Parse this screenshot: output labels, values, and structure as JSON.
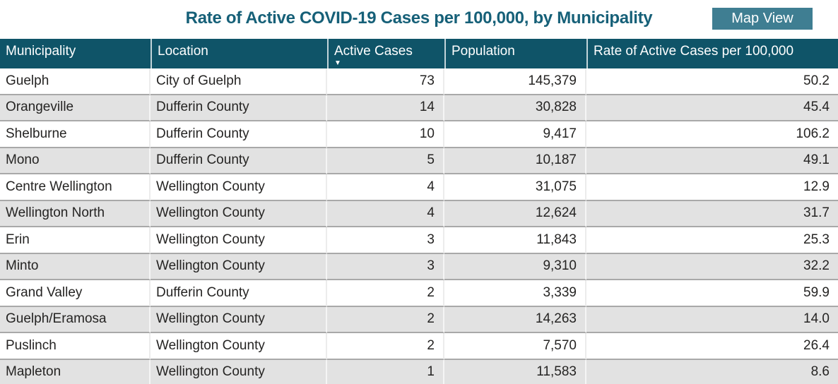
{
  "header": {
    "title": "Rate of Active COVID-19 Cases per 100,000, by Municipality",
    "map_view_button_label": "Map View"
  },
  "colors": {
    "title_text": "#166078",
    "table_header_bg": "#0F5468",
    "table_header_text": "#FFFFFF",
    "button_bg": "#3F7E92",
    "button_text": "#FFFFFF",
    "row_bg": "#FFFFFF",
    "row_alt_bg": "#E2E2E2",
    "row_text": "#252423",
    "row_divider": "#A9A9A9"
  },
  "table": {
    "sort_indicator_icon": "▼",
    "sorted_column": "Active Cases",
    "sort_direction": "descending",
    "columns": [
      {
        "key": "municipality",
        "label": "Municipality",
        "align": "left"
      },
      {
        "key": "location",
        "label": "Location",
        "align": "left"
      },
      {
        "key": "active_cases",
        "label": "Active Cases",
        "align": "right"
      },
      {
        "key": "population",
        "label": "Population",
        "align": "right"
      },
      {
        "key": "rate_per_100k",
        "label": "Rate of Active Cases per 100,000",
        "align": "right"
      }
    ],
    "rows": [
      {
        "municipality": "Guelph",
        "location": "City of Guelph",
        "active_cases": "73",
        "population": "145,379",
        "rate_per_100k": "50.2"
      },
      {
        "municipality": "Orangeville",
        "location": "Dufferin County",
        "active_cases": "14",
        "population": "30,828",
        "rate_per_100k": "45.4"
      },
      {
        "municipality": "Shelburne",
        "location": "Dufferin County",
        "active_cases": "10",
        "population": "9,417",
        "rate_per_100k": "106.2"
      },
      {
        "municipality": "Mono",
        "location": "Dufferin County",
        "active_cases": "5",
        "population": "10,187",
        "rate_per_100k": "49.1"
      },
      {
        "municipality": "Centre Wellington",
        "location": "Wellington County",
        "active_cases": "4",
        "population": "31,075",
        "rate_per_100k": "12.9"
      },
      {
        "municipality": "Wellington North",
        "location": "Wellington County",
        "active_cases": "4",
        "population": "12,624",
        "rate_per_100k": "31.7"
      },
      {
        "municipality": "Erin",
        "location": "Wellington County",
        "active_cases": "3",
        "population": "11,843",
        "rate_per_100k": "25.3"
      },
      {
        "municipality": "Minto",
        "location": "Wellington County",
        "active_cases": "3",
        "population": "9,310",
        "rate_per_100k": "32.2"
      },
      {
        "municipality": "Grand Valley",
        "location": "Dufferin County",
        "active_cases": "2",
        "population": "3,339",
        "rate_per_100k": "59.9"
      },
      {
        "municipality": "Guelph/Eramosa",
        "location": "Wellington County",
        "active_cases": "2",
        "population": "14,263",
        "rate_per_100k": "14.0"
      },
      {
        "municipality": "Puslinch",
        "location": "Wellington County",
        "active_cases": "2",
        "population": "7,570",
        "rate_per_100k": "26.4"
      },
      {
        "municipality": "Mapleton",
        "location": "Wellington County",
        "active_cases": "1",
        "population": "11,583",
        "rate_per_100k": "8.6"
      }
    ]
  }
}
